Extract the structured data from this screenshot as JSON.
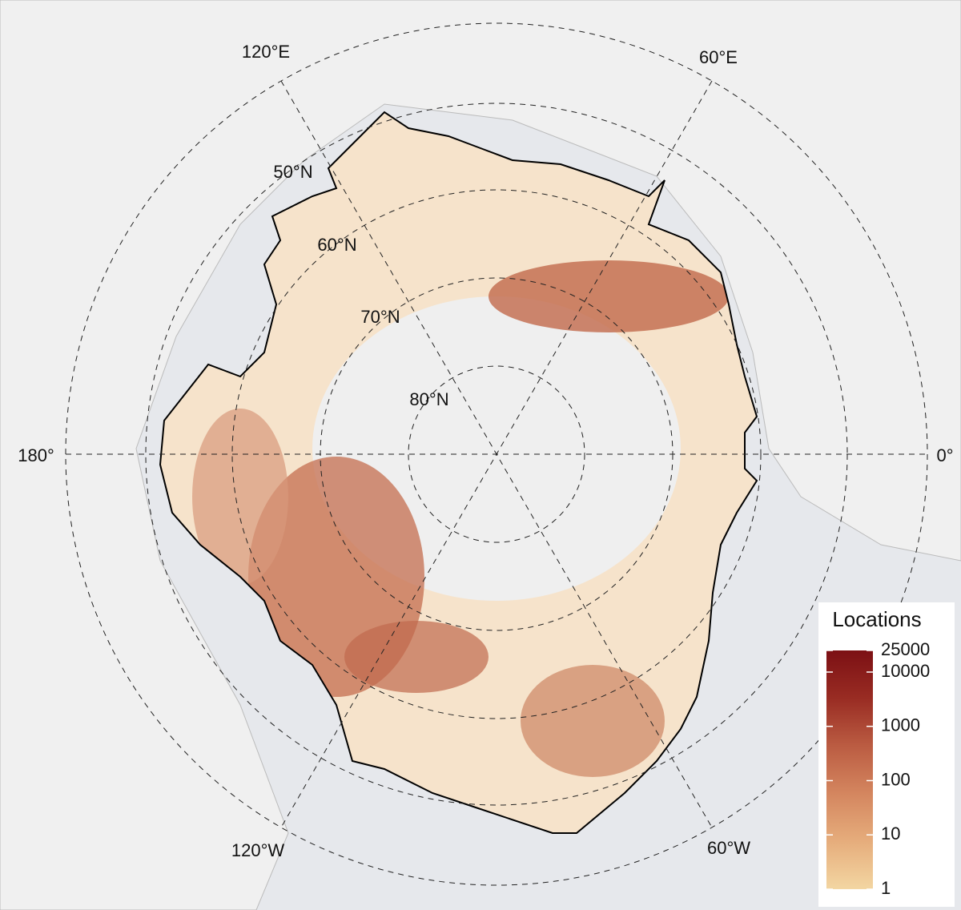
{
  "map": {
    "graticule_labels": {
      "longitude": [
        "120°E",
        "60°E",
        "180°",
        "0°",
        "120°W",
        "60°W"
      ],
      "latitude": [
        "50°N",
        "60°N",
        "70°N",
        "80°N"
      ]
    },
    "legend": {
      "title": "Locations",
      "scale": "log",
      "lim": [
        1,
        25000
      ],
      "ticks": [
        1,
        10,
        100,
        1000,
        10000,
        25000
      ],
      "colors": [
        "#f3d6a2",
        "#e6ad7c",
        "#d4865f",
        "#bb5c42",
        "#992c23",
        "#7c1014"
      ]
    }
  }
}
